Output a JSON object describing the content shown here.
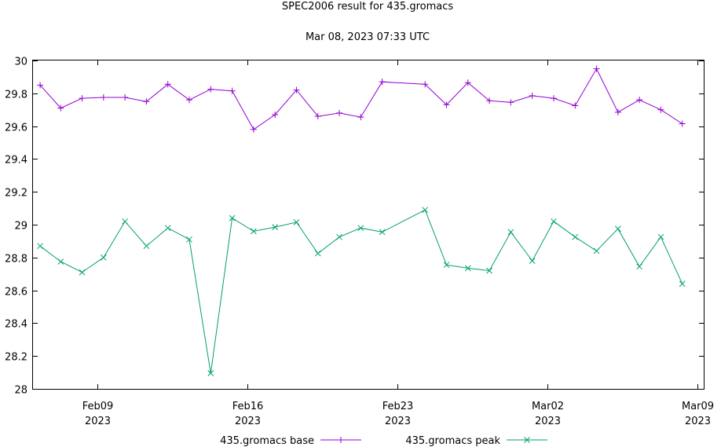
{
  "chart_data": {
    "type": "line",
    "title": "SPEC2006 result for 435.gromacs",
    "subtitle": "Mar 08, 2023 07:33 UTC",
    "xlabel": "",
    "ylabel": "",
    "xlim": [
      "2023-02-06",
      "2023-03-09"
    ],
    "ylim": [
      28,
      30
    ],
    "grid": false,
    "legend_position": "bottom",
    "y_ticks": [
      "28",
      "28.2",
      "28.4",
      "28.6",
      "28.8",
      "29",
      "29.2",
      "29.4",
      "29.6",
      "29.8",
      "30"
    ],
    "x_ticks": [
      {
        "date": "2023-02-09",
        "line1": "Feb09",
        "line2": "2023"
      },
      {
        "date": "2023-02-16",
        "line1": "Feb16",
        "line2": "2023"
      },
      {
        "date": "2023-02-23",
        "line1": "Feb23",
        "line2": "2023"
      },
      {
        "date": "2023-03-02",
        "line1": "Mar02",
        "line2": "2023"
      },
      {
        "date": "2023-03-09",
        "line1": "Mar09",
        "line2": "2023"
      }
    ],
    "x": [
      "2023-02-06T08:00",
      "2023-02-07T07:00",
      "2023-02-08T07:00",
      "2023-02-09T07:00",
      "2023-02-10T07:00",
      "2023-02-11T07:00",
      "2023-02-12T07:00",
      "2023-02-13T07:00",
      "2023-02-14T07:00",
      "2023-02-15T07:00",
      "2023-02-16T07:00",
      "2023-02-17T07:00",
      "2023-02-18T07:00",
      "2023-02-19T07:00",
      "2023-02-20T07:00",
      "2023-02-21T07:00",
      "2023-02-22T07:00",
      "2023-02-24T07:00",
      "2023-02-25T07:00",
      "2023-02-26T07:00",
      "2023-02-27T07:00",
      "2023-02-28T07:00",
      "2023-03-01T07:00",
      "2023-03-02T07:00",
      "2023-03-03T07:00",
      "2023-03-04T07:00",
      "2023-03-05T07:00",
      "2023-03-06T07:00",
      "2023-03-07T07:00",
      "2023-03-08T07:00"
    ],
    "series": [
      {
        "name": "435.gromacs base",
        "color": "#9400d3",
        "marker": "+",
        "values": [
          29.85,
          29.71,
          29.77,
          29.775,
          29.775,
          29.75,
          29.855,
          29.76,
          29.825,
          29.815,
          29.58,
          29.67,
          29.82,
          29.66,
          29.68,
          29.655,
          29.87,
          29.855,
          29.73,
          29.865,
          29.755,
          29.745,
          29.785,
          29.77,
          29.725,
          29.95,
          29.685,
          29.76,
          29.7,
          29.615
        ]
      },
      {
        "name": "435.gromacs peak",
        "color": "#009e73",
        "marker": "x",
        "values": [
          28.87,
          28.775,
          28.71,
          28.8,
          29.02,
          28.87,
          28.98,
          28.91,
          28.095,
          29.04,
          28.96,
          28.985,
          29.015,
          28.825,
          28.925,
          28.98,
          28.955,
          29.09,
          28.755,
          28.735,
          28.72,
          28.955,
          28.78,
          29.02,
          28.925,
          28.84,
          28.975,
          28.745,
          28.925,
          28.64
        ]
      }
    ]
  }
}
